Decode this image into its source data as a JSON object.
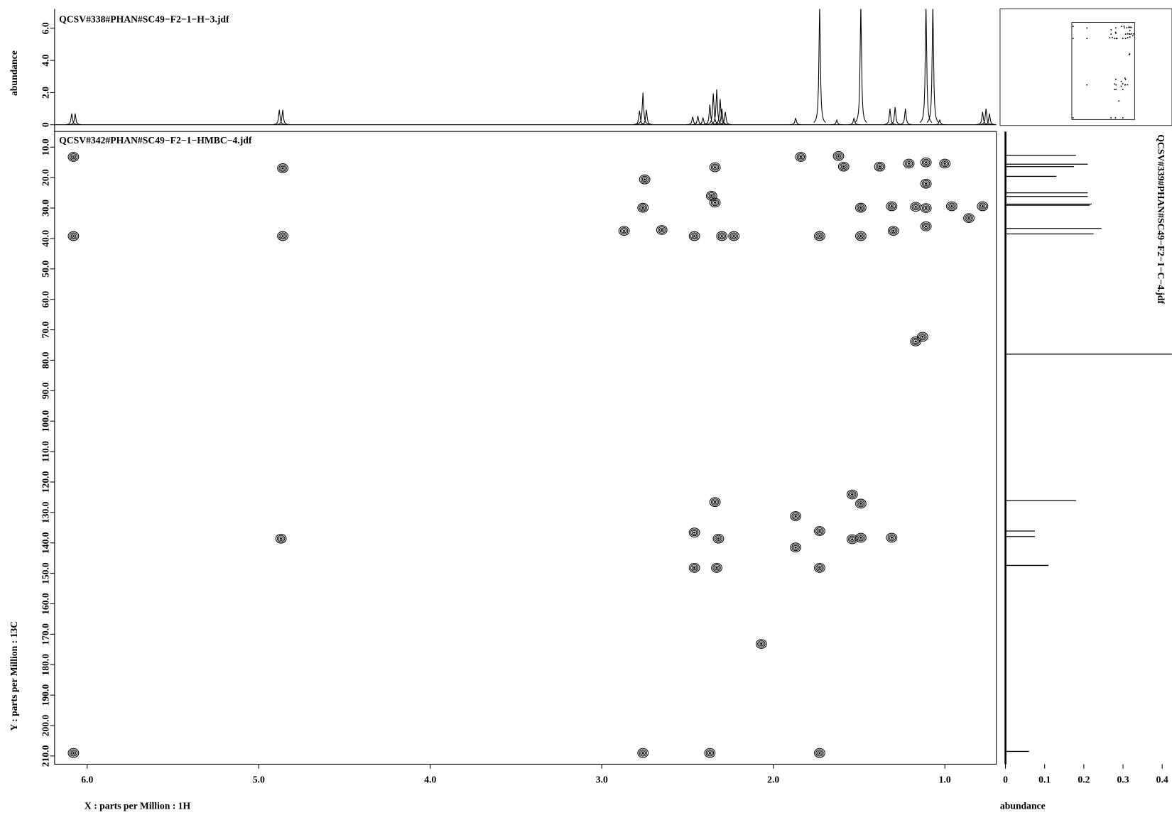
{
  "chart_data": [
    {
      "type": "contour",
      "title": "QCSV#342#PHAN#SC49−F2−1−HMBC−4.jdf",
      "xlabel": "X : parts per Million : 1H",
      "ylabel": "Y : parts per Million : 13C",
      "color": "#000000",
      "xlim": [
        6.19,
        0.7
      ],
      "ylim": [
        4.85,
        212.7
      ],
      "xticks": [
        {
          "value": 6,
          "label": "6.0"
        },
        {
          "value": 5,
          "label": "5.0"
        },
        {
          "value": 4,
          "label": "4.0"
        },
        {
          "value": 3,
          "label": "3.0"
        },
        {
          "value": 2,
          "label": "2.0"
        },
        {
          "value": 1,
          "label": "1.0"
        }
      ],
      "yticks": [
        {
          "value": 10,
          "label": "10.0"
        },
        {
          "value": 20,
          "label": "20.0"
        },
        {
          "value": 30,
          "label": "30.0"
        },
        {
          "value": 40,
          "label": "40.0"
        },
        {
          "value": 50,
          "label": "50.0"
        },
        {
          "value": 60,
          "label": "60.0"
        },
        {
          "value": 70,
          "label": "70.0"
        },
        {
          "value": 80,
          "label": "80.0"
        },
        {
          "value": 90,
          "label": "90.0"
        },
        {
          "value": 100,
          "label": "100.0"
        },
        {
          "value": 110,
          "label": "110.0"
        },
        {
          "value": 120,
          "label": "120.0"
        },
        {
          "value": 130,
          "label": "130.0"
        },
        {
          "value": 140,
          "label": "140.0"
        },
        {
          "value": 150,
          "label": "150.0"
        },
        {
          "value": 160,
          "label": "160.0"
        },
        {
          "value": 170,
          "label": "170.0"
        },
        {
          "value": 180,
          "label": "180.0"
        },
        {
          "value": 190,
          "label": "190.0"
        },
        {
          "value": 200,
          "label": "200.0"
        },
        {
          "value": 210,
          "label": "210.0"
        }
      ],
      "x": [
        6.08,
        4.86,
        4.86,
        6.08,
        4.87,
        6.08,
        2.76,
        2.37,
        1.73,
        2.76,
        2.75,
        2.87,
        2.65,
        2.46,
        2.34,
        2.36,
        2.34,
        2.23,
        2.3,
        1.84,
        1.62,
        1.59,
        1.38,
        1.21,
        1.0,
        1.73,
        1.49,
        1.49,
        1.31,
        1.17,
        1.11,
        1.11,
        1.11,
        1.11,
        0.96,
        0.86,
        0.78,
        1.3,
        1.17,
        1.13,
        2.34,
        2.32,
        2.46,
        2.33,
        2.46,
        1.73,
        1.73,
        1.87,
        1.87,
        1.49,
        1.49,
        1.54,
        1.54,
        1.31,
        2.07
      ],
      "values": [
        13.2,
        16.9,
        39.2,
        39.2,
        138.6,
        209.0,
        209.0,
        209.0,
        209.0,
        29.9,
        20.6,
        37.5,
        37.2,
        39.2,
        16.6,
        26.0,
        28.2,
        39.2,
        39.2,
        13.2,
        12.9,
        16.4,
        16.4,
        15.4,
        15.4,
        39.2,
        39.2,
        29.9,
        29.4,
        29.6,
        15.0,
        22.0,
        30.0,
        36.0,
        29.4,
        33.3,
        29.4,
        37.5,
        73.8,
        72.3,
        126.6,
        138.6,
        136.6,
        148.2,
        148.2,
        136.1,
        148.2,
        131.2,
        141.5,
        127.1,
        138.3,
        124.1,
        138.8,
        138.3,
        173.2
      ]
    },
    {
      "type": "spectrum",
      "title": "QCSV#338#PHAN#SC49−F2−1−H−3.jdf",
      "ylabel": "abundance",
      "color": "#000000",
      "xlim": [
        6.19,
        0.7
      ],
      "ylim": [
        -0.14,
        7.2
      ],
      "yticks": [
        0,
        {
          "value": 2,
          "label": "2.0"
        },
        {
          "value": 4,
          "label": "4.0"
        },
        {
          "value": 6,
          "label": "6.0"
        }
      ],
      "x": [
        6.09,
        6.07,
        4.88,
        4.86,
        2.78,
        2.76,
        2.74,
        2.47,
        2.44,
        2.41,
        2.37,
        2.35,
        2.33,
        2.31,
        2.3,
        2.28,
        1.87,
        1.73,
        1.63,
        1.53,
        1.49,
        1.32,
        1.29,
        1.23,
        1.11,
        1.07,
        1.03,
        0.78,
        0.76,
        0.74
      ],
      "values": [
        0.7,
        0.7,
        0.93,
        0.93,
        0.88,
        2.0,
        0.93,
        0.5,
        0.55,
        0.45,
        1.26,
        1.95,
        2.2,
        1.6,
        1.0,
        0.8,
        0.42,
        7.5,
        0.3,
        0.4,
        7.5,
        1.0,
        1.1,
        1.0,
        7.5,
        7.5,
        0.3,
        0.8,
        1.0,
        0.7
      ]
    },
    {
      "type": "spectrum-vertical",
      "title": "QCSV#339#PHAN#SC49−F2−1−C−4.jdf",
      "xlabel": "abundance",
      "color": "#000000",
      "xlim": [
        -0.01,
        0.425
      ],
      "xticks": [
        0,
        0.1,
        0.2,
        0.3,
        0.4
      ],
      "ylim": [
        4.85,
        212.7
      ],
      "y": [
        12.7,
        15.6,
        16.4,
        19.6,
        25.0,
        26.2,
        28.7,
        29.1,
        36.7,
        38.5,
        78.0,
        126.1,
        136.1,
        137.9,
        147.4,
        208.5
      ],
      "values": [
        0.18,
        0.21,
        0.175,
        0.13,
        0.21,
        0.21,
        0.22,
        0.215,
        0.245,
        0.225,
        0.45,
        0.18,
        0.075,
        0.075,
        0.11,
        0.06
      ]
    }
  ]
}
